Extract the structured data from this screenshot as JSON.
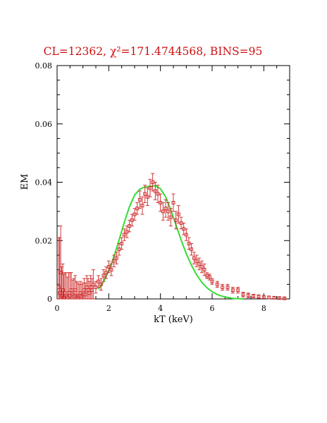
{
  "chart_data": {
    "type": "scatter",
    "title": "CL=12362, χ²=171.4744568, BINS=95",
    "title_color": "#cc1111",
    "xlabel": "kT (keV)",
    "ylabel": "EM",
    "xlim": [
      0,
      9
    ],
    "ylim": [
      0,
      0.08
    ],
    "x_ticks": [
      "0",
      "2",
      "4",
      "6",
      "8"
    ],
    "y_ticks": [
      "0",
      "0.02",
      "0.04",
      "0.06",
      "0.08"
    ],
    "grid": false,
    "series": [
      {
        "kind": "points_with_errorbars",
        "color": "#cc2222",
        "x": [
          0.06,
          0.1,
          0.14,
          0.18,
          0.22,
          0.26,
          0.3,
          0.35,
          0.4,
          0.45,
          0.5,
          0.55,
          0.6,
          0.65,
          0.7,
          0.75,
          0.8,
          0.85,
          0.9,
          0.95,
          1.0,
          1.05,
          1.1,
          1.15,
          1.2,
          1.25,
          1.3,
          1.35,
          1.4,
          1.5,
          1.6,
          1.7,
          1.8,
          1.9,
          2.0,
          2.1,
          2.2,
          2.3,
          2.4,
          2.5,
          2.6,
          2.7,
          2.8,
          2.9,
          3.0,
          3.1,
          3.2,
          3.3,
          3.4,
          3.5,
          3.6,
          3.7,
          3.8,
          3.9,
          4.0,
          4.1,
          4.2,
          4.3,
          4.4,
          4.5,
          4.6,
          4.7,
          4.8,
          4.9,
          5.0,
          5.1,
          5.2,
          5.3,
          5.4,
          5.5,
          5.6,
          5.7,
          5.8,
          5.9,
          6.0,
          6.2,
          6.4,
          6.6,
          6.8,
          7.0,
          7.2,
          7.4,
          7.6,
          7.8,
          8.0,
          8.2,
          8.4,
          8.6,
          8.8
        ],
        "y": [
          0.004,
          0.002,
          0.009,
          0.001,
          0.003,
          0.0005,
          0.002,
          0.001,
          0.0005,
          0.002,
          0.001,
          0.003,
          0.0015,
          0.001,
          0.003,
          0.001,
          0.0005,
          0.001,
          0.002,
          0.001,
          0.0015,
          0.003,
          0.0015,
          0.004,
          0.003,
          0.002,
          0.004,
          0.003,
          0.005,
          0.004,
          0.006,
          0.005,
          0.008,
          0.009,
          0.011,
          0.01,
          0.013,
          0.014,
          0.017,
          0.019,
          0.022,
          0.023,
          0.025,
          0.027,
          0.029,
          0.031,
          0.034,
          0.032,
          0.036,
          0.035,
          0.038,
          0.04,
          0.037,
          0.036,
          0.033,
          0.03,
          0.031,
          0.03,
          0.028,
          0.033,
          0.027,
          0.029,
          0.026,
          0.024,
          0.022,
          0.019,
          0.017,
          0.014,
          0.013,
          0.012,
          0.011,
          0.01,
          0.008,
          0.0075,
          0.006,
          0.005,
          0.004,
          0.004,
          0.003,
          0.003,
          0.0015,
          0.0012,
          0.001,
          0.0008,
          0.0006,
          0.0005,
          0.0004,
          0.0003,
          0.0002
        ],
        "err": [
          0.017,
          0.019,
          0.016,
          0.01,
          0.009,
          0.008,
          0.007,
          0.008,
          0.007,
          0.007,
          0.008,
          0.006,
          0.005,
          0.006,
          0.005,
          0.005,
          0.005,
          0.004,
          0.004,
          0.004,
          0.004,
          0.004,
          0.004,
          0.004,
          0.004,
          0.004,
          0.004,
          0.004,
          0.005,
          0.002,
          0.002,
          0.002,
          0.002,
          0.002,
          0.002,
          0.002,
          0.002,
          0.002,
          0.002,
          0.002,
          0.002,
          0.002,
          0.002,
          0.002,
          0.002,
          0.002,
          0.003,
          0.003,
          0.003,
          0.003,
          0.003,
          0.003,
          0.003,
          0.003,
          0.003,
          0.003,
          0.003,
          0.003,
          0.003,
          0.003,
          0.003,
          0.003,
          0.002,
          0.002,
          0.002,
          0.002,
          0.002,
          0.002,
          0.002,
          0.002,
          0.002,
          0.002,
          0.001,
          0.001,
          0.001,
          0.001,
          0.001,
          0.001,
          0.001,
          0.001,
          0.0008,
          0.0008,
          0.0006,
          0.0006,
          0.0005,
          0.0005,
          0.0004,
          0.0004,
          0.0004
        ]
      },
      {
        "kind": "model_curve",
        "color": "#33dd33",
        "x": [
          1.6,
          1.8,
          2.0,
          2.2,
          2.4,
          2.6,
          2.8,
          3.0,
          3.2,
          3.4,
          3.6,
          3.8,
          4.0,
          4.2,
          4.4,
          4.6,
          4.8,
          5.0,
          5.2,
          5.4,
          5.6,
          5.8,
          6.0,
          6.2,
          6.4,
          6.6,
          6.8,
          7.0,
          7.2
        ],
        "y": [
          0.0033,
          0.0059,
          0.0097,
          0.0145,
          0.0202,
          0.0262,
          0.0316,
          0.0356,
          0.0376,
          0.0384,
          0.0386,
          0.0388,
          0.0378,
          0.035,
          0.0306,
          0.0254,
          0.0202,
          0.0155,
          0.0115,
          0.0083,
          0.0057,
          0.0038,
          0.0025,
          0.0015,
          0.0009,
          0.0005,
          0.0002,
          0.0001,
          0.0
        ]
      }
    ]
  }
}
